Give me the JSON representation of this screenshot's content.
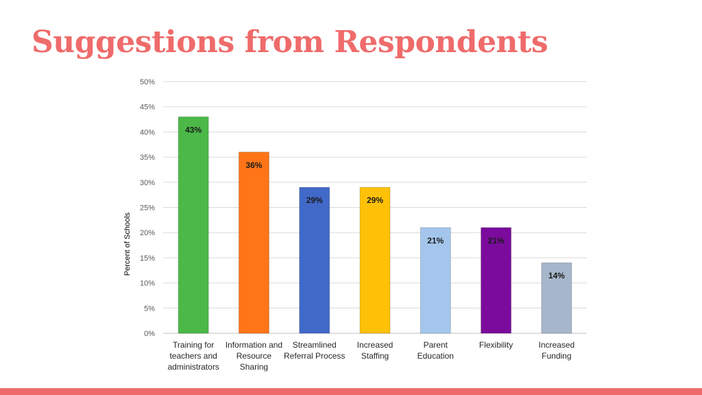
{
  "slide": {
    "title": "Suggestions from Respondents"
  },
  "colors": {
    "accent": "#ef6b6b"
  },
  "chart_data": {
    "type": "bar",
    "title": "",
    "xlabel": "",
    "ylabel": "Percent of Schools",
    "ylim": [
      0,
      50
    ],
    "yticks": [
      "0%",
      "5%",
      "10%",
      "15%",
      "20%",
      "25%",
      "30%",
      "35%",
      "40%",
      "45%",
      "50%"
    ],
    "grid": true,
    "categories": [
      [
        "Training for",
        "teachers and",
        "administrators"
      ],
      [
        "Information and",
        "Resource",
        "Sharing"
      ],
      [
        "Streamlined",
        "Referral Process"
      ],
      [
        "Increased",
        "Staffing"
      ],
      [
        "Parent",
        "Education"
      ],
      [
        "Flexibility"
      ],
      [
        "Increased",
        "Funding"
      ]
    ],
    "values": [
      43,
      36,
      29,
      29,
      21,
      21,
      14
    ],
    "data_labels": [
      "43%",
      "36%",
      "29%",
      "29%",
      "21%",
      "21%",
      "14%"
    ],
    "bar_colors": [
      "#4cb848",
      "#ff7518",
      "#4169c8",
      "#ffc107",
      "#a4c6ec",
      "#7b0b9c",
      "#a6b6cb"
    ]
  }
}
